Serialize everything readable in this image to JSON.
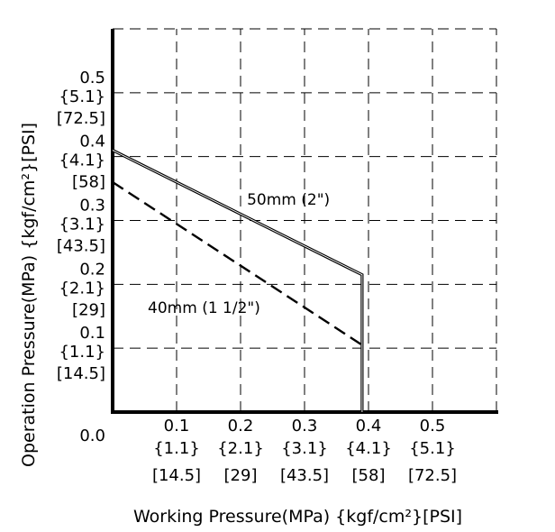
{
  "chart_data": {
    "type": "line",
    "xlabel": "Working Pressure(MPa) {kgf/cm²}[PSI]",
    "ylabel": "Operation Pressure(MPa) {kgf/cm²}[PSI]",
    "xlim": [
      0,
      0.6
    ],
    "ylim": [
      0,
      0.6
    ],
    "grid": true,
    "x_ticks": [
      {
        "value": 0.1,
        "mpa": "0.1",
        "kgf": "{1.1}",
        "psi": "[14.5]"
      },
      {
        "value": 0.2,
        "mpa": "0.2",
        "kgf": "{2.1}",
        "psi": "[29]"
      },
      {
        "value": 0.3,
        "mpa": "0.3",
        "kgf": "{3.1}",
        "psi": "[43.5]"
      },
      {
        "value": 0.4,
        "mpa": "0.4",
        "kgf": "{4.1}",
        "psi": "[58]"
      },
      {
        "value": 0.5,
        "mpa": "0.5",
        "kgf": "{5.1}",
        "psi": "[72.5]"
      }
    ],
    "y_ticks": [
      {
        "value": 0.1,
        "mpa": "0.1",
        "kgf": "{1.1}",
        "psi": "[14.5]"
      },
      {
        "value": 0.2,
        "mpa": "0.2",
        "kgf": "{2.1}",
        "psi": "[29]"
      },
      {
        "value": 0.3,
        "mpa": "0.3",
        "kgf": "{3.1}",
        "psi": "[43.5]"
      },
      {
        "value": 0.4,
        "mpa": "0.4",
        "kgf": "{4.1}",
        "psi": "[58]"
      },
      {
        "value": 0.5,
        "mpa": "0.5",
        "kgf": "{5.1}",
        "psi": "[72.5]"
      }
    ],
    "origin_label": "0.0",
    "series": [
      {
        "name": "50mm (2\")",
        "style": "solid",
        "x": [
          0,
          0.39,
          0.39
        ],
        "y": [
          0.41,
          0.215,
          0
        ]
      },
      {
        "name": "40mm (1 1/2\")",
        "style": "dashed",
        "x": [
          0,
          0.39
        ],
        "y": [
          0.36,
          0.105
        ]
      }
    ]
  }
}
